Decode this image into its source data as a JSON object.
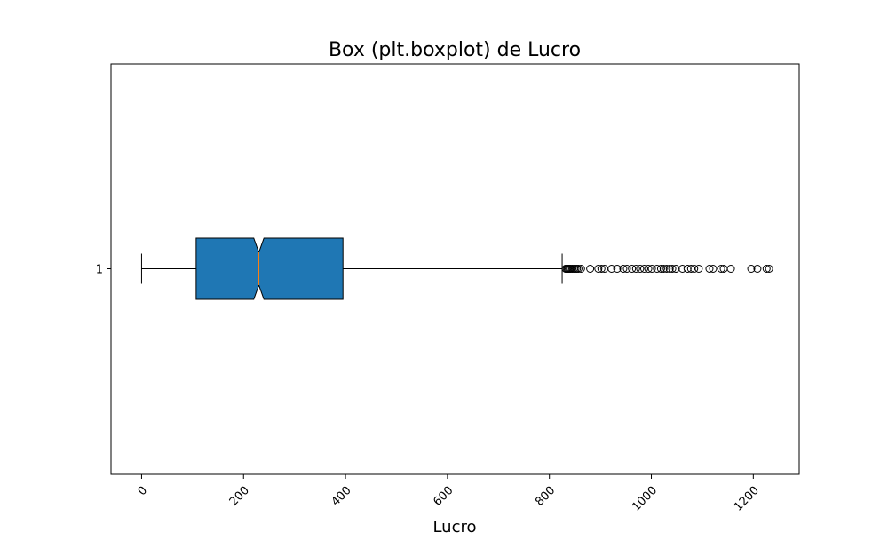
{
  "chart_data": {
    "type": "boxplot",
    "orientation": "horizontal",
    "notched": true,
    "title": "Box (plt.boxplot) de Lucro",
    "xlabel": "Lucro",
    "ylabel": "",
    "xlim": [
      -60,
      1290
    ],
    "xticks": [
      0,
      200,
      400,
      600,
      800,
      1000,
      1200
    ],
    "xtick_rotation": 45,
    "yticks": [
      "1"
    ],
    "box_color": "#1f77b4",
    "median_color": "#ff7f0e",
    "series": [
      {
        "category": "1",
        "whisker_low": 0,
        "q1": 107,
        "median": 230,
        "q3": 395,
        "whisker_high": 825,
        "notch_low": 220,
        "notch_high": 240,
        "outliers": [
          832,
          834,
          836,
          838,
          840,
          842,
          845,
          848,
          851,
          854,
          857,
          862,
          880,
          896,
          902,
          908,
          922,
          933,
          945,
          952,
          962,
          970,
          978,
          986,
          994,
          1001,
          1011,
          1019,
          1024,
          1030,
          1036,
          1041,
          1048,
          1061,
          1071,
          1078,
          1084,
          1093,
          1114,
          1121,
          1137,
          1142,
          1156,
          1196,
          1208,
          1226,
          1231
        ]
      }
    ]
  }
}
